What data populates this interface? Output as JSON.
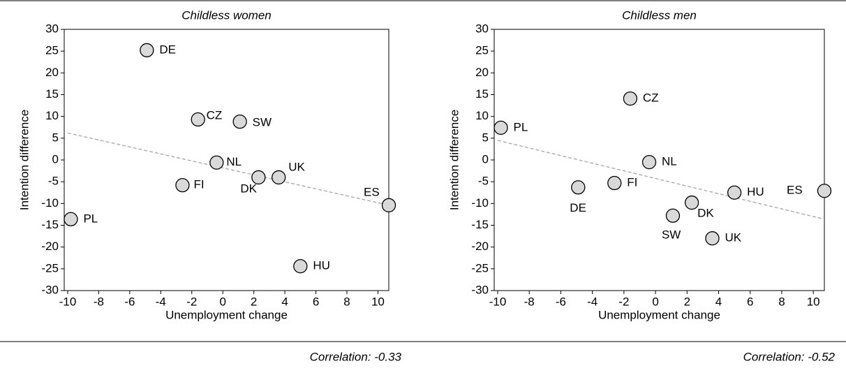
{
  "chart_data": [
    {
      "type": "scatter",
      "title": "Childless women",
      "x_label": "Unemployment change",
      "y_label": "Intention difference",
      "annotation": "Correlation: -0.33",
      "points": {
        "labels": [
          "DE",
          "CZ",
          "SW",
          "NL",
          "DK",
          "UK",
          "FI",
          "ES",
          "PL",
          "HU"
        ],
        "x": [
          -4.9,
          -1.6,
          1.1,
          -0.4,
          2.3,
          3.6,
          -2.6,
          10.7,
          -9.8,
          5.0
        ],
        "y": [
          25.2,
          9.3,
          8.8,
          -0.6,
          -4.0,
          -4.0,
          -5.8,
          -10.4,
          -13.6,
          -24.4
        ]
      },
      "trendline": {
        "x": [
          -10,
          10.7
        ],
        "y": [
          6.2,
          -10.4
        ]
      },
      "color": "#d9d9d9",
      "line_color": "#a6a6a6",
      "xlim": [
        -10,
        10.7
      ],
      "xticks": [
        -10,
        -8,
        -6,
        -4,
        -2,
        0,
        2,
        4,
        6,
        8,
        10
      ],
      "ylim": [
        -30,
        30
      ],
      "yticks": [
        -30,
        -25,
        -20,
        -15,
        -10,
        -5,
        0,
        5,
        10,
        15,
        20,
        25,
        30
      ]
    },
    {
      "type": "scatter",
      "title": "Childless men",
      "x_label": "Unemployment change",
      "y_label": "Intention difference",
      "annotation": "Correlation: -0.52",
      "points": {
        "labels": [
          "PL",
          "CZ",
          "NL",
          "DE",
          "FI",
          "HU",
          "ES",
          "DK",
          "SW",
          "UK"
        ],
        "x": [
          -9.8,
          -1.6,
          -0.4,
          -4.9,
          -2.6,
          5.0,
          10.7,
          2.3,
          1.1,
          3.6
        ],
        "y": [
          7.4,
          14.1,
          -0.5,
          -6.3,
          -5.3,
          -7.5,
          -7.1,
          -9.8,
          -12.8,
          -18.0
        ]
      },
      "trendline": {
        "x": [
          -10,
          10.7
        ],
        "y": [
          4.5,
          -13.6
        ]
      },
      "color": "#d9d9d9",
      "line_color": "#a6a6a6",
      "xlim": [
        -10,
        10.7
      ],
      "xticks": [
        -10,
        -8,
        -6,
        -4,
        -2,
        0,
        2,
        4,
        6,
        8,
        10
      ],
      "ylim": [
        -30,
        30
      ],
      "yticks": [
        -30,
        -25,
        -20,
        -15,
        -10,
        -5,
        0,
        5,
        10,
        15,
        20,
        25,
        30
      ]
    }
  ]
}
